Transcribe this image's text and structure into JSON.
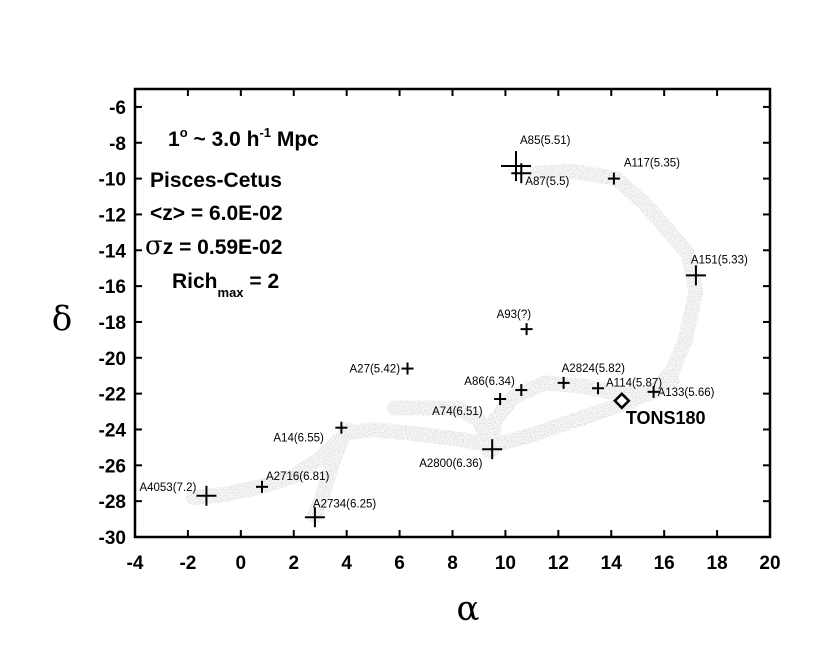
{
  "chart_data": {
    "type": "scatter",
    "xlabel": "α",
    "ylabel": "δ",
    "xlim": [
      -4,
      20
    ],
    "ylim": [
      -30,
      -5
    ],
    "x_ticks": [
      "-4",
      "-2",
      "0",
      "2",
      "4",
      "6",
      "8",
      "10",
      "12",
      "14",
      "16",
      "18",
      "20"
    ],
    "y_ticks": [
      "-6",
      "-8",
      "-10",
      "-12",
      "-14",
      "-16",
      "-18",
      "-20",
      "-22",
      "-24",
      "-26",
      "-28",
      "-30"
    ],
    "grid": false,
    "legend": "none",
    "annotations": {
      "scale_prefix": "1",
      "scale_sup": "o",
      "scale_mid": " ~ 3.0 h",
      "scale_sup2": "-1",
      "scale_suffix": " Mpc",
      "name": "Pisces-Cetus",
      "mean_z": "<z> = 6.0E-02",
      "sigma_symbol": "σ",
      "sigma_z": "z = 0.59E-02",
      "rich_prefix": "Rich",
      "rich_sub": "max",
      "rich_suffix": " = 2"
    },
    "points": [
      {
        "label": "A85(5.51)",
        "x": 10.4,
        "y": -9.3,
        "size": "large"
      },
      {
        "label": "A87(5.5)",
        "x": 10.6,
        "y": -9.7,
        "size": "medium"
      },
      {
        "label": "A117(5.35)",
        "x": 14.1,
        "y": -10.0,
        "size": "small"
      },
      {
        "label": "A151(5.33)",
        "x": 17.2,
        "y": -15.4,
        "size": "medium"
      },
      {
        "label": "A93(?)",
        "x": 10.8,
        "y": -18.4,
        "size": "small"
      },
      {
        "label": "A27(5.42)",
        "x": 6.3,
        "y": -20.6,
        "size": "small"
      },
      {
        "label": "A2824(5.82)",
        "x": 12.2,
        "y": -21.4,
        "size": "small"
      },
      {
        "label": "A86(6.34)",
        "x": 10.6,
        "y": -21.8,
        "size": "small"
      },
      {
        "label": "A114(5.87)",
        "x": 13.5,
        "y": -21.7,
        "size": "small"
      },
      {
        "label": "A133(5.66)",
        "x": 15.6,
        "y": -21.9,
        "size": "small"
      },
      {
        "label": "A74(6.51)",
        "x": 9.8,
        "y": -22.3,
        "size": "small"
      },
      {
        "label": "A14(6.55)",
        "x": 3.8,
        "y": -23.9,
        "size": "small"
      },
      {
        "label": "A2800(6.36)",
        "x": 9.5,
        "y": -25.1,
        "size": "medium"
      },
      {
        "label": "A2716(6.81)",
        "x": 0.8,
        "y": -27.2,
        "size": "small"
      },
      {
        "label": "A4053(7.2)",
        "x": -1.3,
        "y": -27.7,
        "size": "medium"
      },
      {
        "label": "A2734(6.25)",
        "x": 2.8,
        "y": -28.9,
        "size": "medium"
      }
    ],
    "special_point": {
      "label": "TONS180",
      "x": 14.4,
      "y": -22.4,
      "marker": "diamond"
    },
    "filaments": [
      [
        [
          -1.8,
          -27.8
        ],
        [
          -0.5,
          -27.6
        ],
        [
          1.0,
          -27.1
        ],
        [
          2.0,
          -26.6
        ],
        [
          3.0,
          -25.6
        ],
        [
          4.0,
          -24.2
        ],
        [
          5.0,
          -24.0
        ],
        [
          7.0,
          -24.3
        ],
        [
          8.5,
          -24.6
        ],
        [
          9.5,
          -24.9
        ],
        [
          11.0,
          -24.3
        ],
        [
          13.0,
          -23.3
        ],
        [
          14.6,
          -22.5
        ],
        [
          15.7,
          -21.7
        ],
        [
          16.3,
          -20.8
        ],
        [
          16.8,
          -19.0
        ],
        [
          17.2,
          -16.3
        ],
        [
          16.9,
          -14.2
        ],
        [
          16.1,
          -12.8
        ],
        [
          15.2,
          -11.3
        ],
        [
          14.2,
          -10.0
        ],
        [
          12.6,
          -9.6
        ],
        [
          11.2,
          -9.7
        ]
      ],
      [
        [
          9.4,
          -25.2
        ],
        [
          9.6,
          -23.5
        ],
        [
          10.3,
          -22.2
        ],
        [
          11.5,
          -21.4
        ],
        [
          13.0,
          -21.6
        ],
        [
          14.2,
          -22.0
        ],
        [
          15.5,
          -22.0
        ],
        [
          16.3,
          -21.3
        ]
      ],
      [
        [
          4.0,
          -24.0
        ],
        [
          3.5,
          -25.7
        ],
        [
          3.1,
          -27.6
        ],
        [
          2.8,
          -28.8
        ]
      ],
      [
        [
          9.5,
          -25.1
        ],
        [
          9.0,
          -23.5
        ],
        [
          8.2,
          -22.8
        ],
        [
          6.8,
          -22.8
        ],
        [
          5.8,
          -22.8
        ]
      ]
    ]
  }
}
